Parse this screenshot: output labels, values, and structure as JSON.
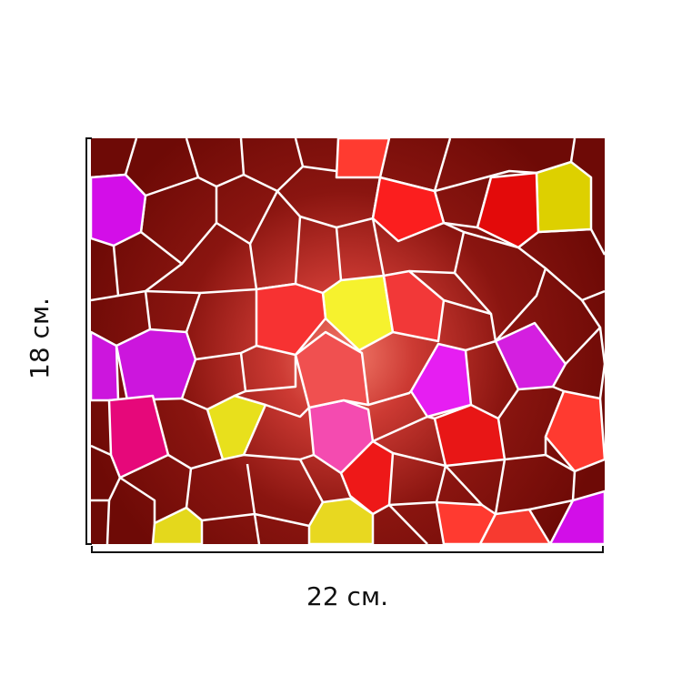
{
  "height_label": "18 см.",
  "width_label": "22 см."
}
